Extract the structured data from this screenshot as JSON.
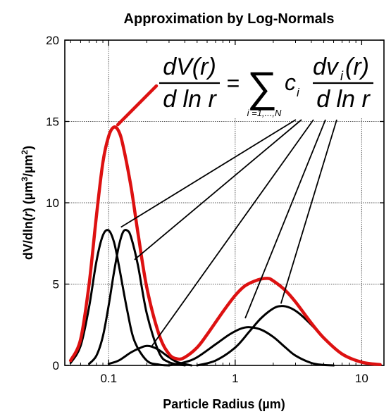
{
  "chart_data": {
    "type": "line",
    "title": "Approximation by Log-Normals",
    "xlabel": "Particle Radius (µm)",
    "ylabel_parts": [
      "dV/dln(",
      "r",
      ") (µm",
      "3",
      "/µm",
      "2",
      ")"
    ],
    "xscale": "log",
    "xlim": [
      0.045,
      15
    ],
    "ylim": [
      0,
      20
    ],
    "x_ticks": [
      {
        "value": 0.1,
        "label": "0.1"
      },
      {
        "value": 1,
        "label": "1"
      },
      {
        "value": 10,
        "label": "10"
      }
    ],
    "y_ticks": [
      {
        "value": 0,
        "label": "0"
      },
      {
        "value": 5,
        "label": "5"
      },
      {
        "value": 10,
        "label": "10"
      },
      {
        "value": 15,
        "label": "15"
      },
      {
        "value": 20,
        "label": "20"
      }
    ],
    "grid": true,
    "colors": {
      "total": "#dd1111",
      "components": "#000000",
      "grid": "#555555"
    },
    "series": [
      {
        "role": "total",
        "x": [
          0.05,
          0.06,
          0.07,
          0.08,
          0.09,
          0.1,
          0.11,
          0.12,
          0.13,
          0.15,
          0.17,
          0.2,
          0.25,
          0.3,
          0.35,
          0.4,
          0.5,
          0.6,
          0.8,
          1.0,
          1.2,
          1.5,
          1.8,
          2.0,
          2.5,
          3.0,
          4.0,
          5.0,
          7.0,
          10.0,
          14.0
        ],
        "y": [
          0.3,
          1.6,
          5.0,
          9.2,
          12.5,
          14.1,
          14.65,
          14.4,
          13.5,
          11.0,
          8.2,
          4.8,
          1.9,
          0.7,
          0.4,
          0.5,
          1.1,
          1.9,
          3.3,
          4.3,
          4.9,
          5.25,
          5.35,
          5.2,
          4.6,
          3.9,
          2.6,
          1.7,
          0.7,
          0.2,
          0.05
        ]
      },
      {
        "role": "component",
        "x": [
          0.05,
          0.06,
          0.07,
          0.08,
          0.09,
          0.1,
          0.11,
          0.12,
          0.14,
          0.16,
          0.2,
          0.25,
          0.3
        ],
        "y": [
          0.15,
          1.2,
          3.6,
          6.4,
          8.0,
          8.3,
          7.6,
          6.2,
          3.4,
          1.5,
          0.3,
          0.05,
          0.0
        ]
      },
      {
        "role": "component",
        "x": [
          0.07,
          0.08,
          0.09,
          0.1,
          0.11,
          0.12,
          0.13,
          0.14,
          0.15,
          0.17,
          0.2,
          0.25,
          0.3,
          0.4
        ],
        "y": [
          0.1,
          0.6,
          1.8,
          3.7,
          5.7,
          7.3,
          8.2,
          8.3,
          7.9,
          6.2,
          3.2,
          0.8,
          0.2,
          0.0
        ]
      },
      {
        "role": "component",
        "x": [
          0.1,
          0.12,
          0.15,
          0.18,
          0.2,
          0.22,
          0.25,
          0.3,
          0.35,
          0.45
        ],
        "y": [
          0.1,
          0.3,
          0.8,
          1.1,
          1.2,
          1.15,
          0.95,
          0.5,
          0.2,
          0.0
        ]
      },
      {
        "role": "component",
        "x": [
          0.3,
          0.4,
          0.5,
          0.7,
          0.9,
          1.1,
          1.3,
          1.6,
          2.0,
          2.5,
          3.0,
          4.0,
          5.0,
          6.0
        ],
        "y": [
          0.0,
          0.2,
          0.5,
          1.3,
          1.9,
          2.25,
          2.35,
          2.2,
          1.75,
          1.1,
          0.6,
          0.15,
          0.03,
          0.0
        ]
      },
      {
        "role": "component",
        "x": [
          0.5,
          0.7,
          1.0,
          1.3,
          1.6,
          2.0,
          2.3,
          2.7,
          3.2,
          4.0,
          5.0,
          7.0,
          10.0,
          14.0
        ],
        "y": [
          0.0,
          0.3,
          1.1,
          2.1,
          2.9,
          3.5,
          3.65,
          3.55,
          3.2,
          2.5,
          1.7,
          0.7,
          0.2,
          0.05
        ]
      }
    ],
    "annotation": {
      "formula": {
        "numerator_left": "dV(r)",
        "denominator_left": "d ln r",
        "equals": "=",
        "sum_symbol": "∑",
        "sum_index": "i =1,...,N",
        "coefficient": "c",
        "coefficient_sub": "i",
        "numerator_right_pre": "dv",
        "numerator_right_sub": "i",
        "numerator_right_post": "(r)",
        "denominator_right": "d ln r"
      }
    }
  }
}
